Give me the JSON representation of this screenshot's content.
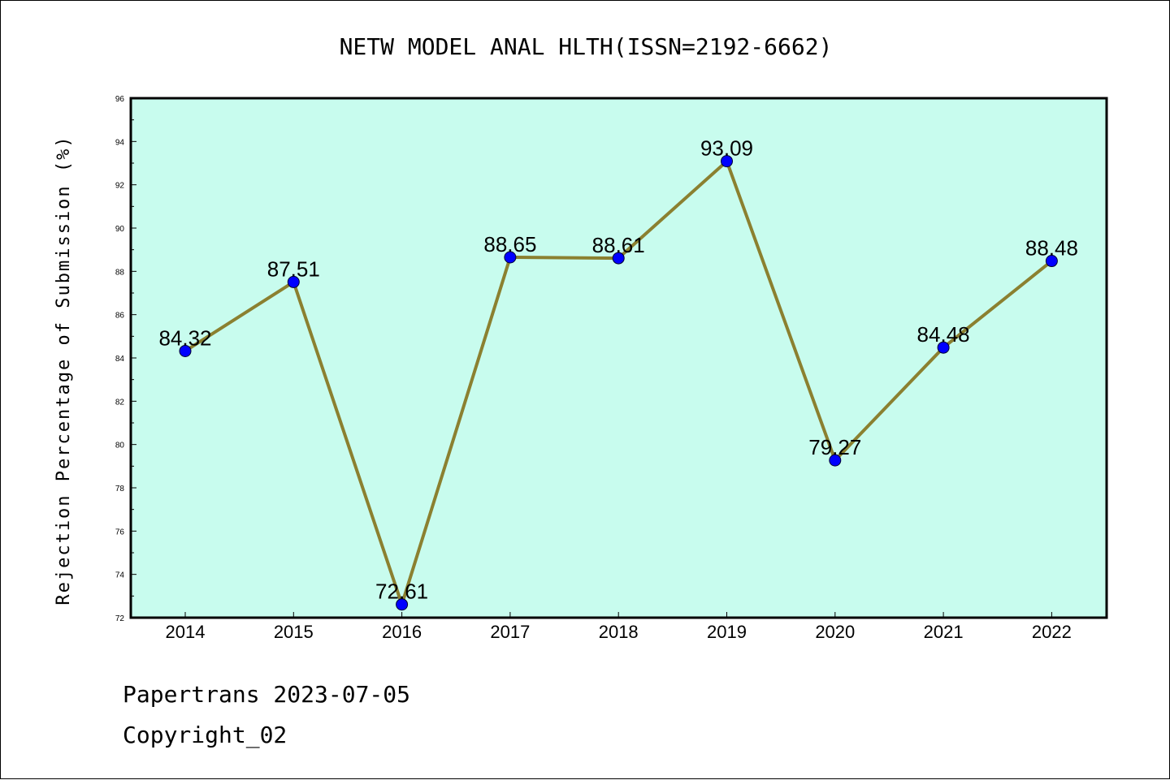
{
  "chart_data": {
    "type": "line",
    "title": "NETW MODEL ANAL HLTH(ISSN=2192-6662)",
    "xlabel": "",
    "ylabel": "Rejection Percentage of Submission (%)",
    "categories": [
      "2014",
      "2015",
      "2016",
      "2017",
      "2018",
      "2019",
      "2020",
      "2021",
      "2022"
    ],
    "series": [
      {
        "values": [
          84.32,
          87.51,
          72.61,
          88.65,
          88.61,
          93.09,
          79.27,
          84.48,
          88.48
        ],
        "labels": [
          "84.32",
          "87.51",
          "72.61",
          "88.65",
          "88.61",
          "93.09",
          "79.27",
          "84.48",
          "88.48"
        ]
      }
    ],
    "ylim": [
      72,
      96
    ],
    "yticks": [
      72,
      74,
      76,
      78,
      80,
      82,
      84,
      86,
      88,
      90,
      92,
      94,
      96
    ],
    "grid": false,
    "legend": "none",
    "colors": {
      "plot_background": "#c8fcee",
      "line": "#8b8030",
      "marker": "#0000ff"
    }
  },
  "footer": {
    "line1": "Papertrans 2023-07-05",
    "line2": "Copyright_02"
  }
}
